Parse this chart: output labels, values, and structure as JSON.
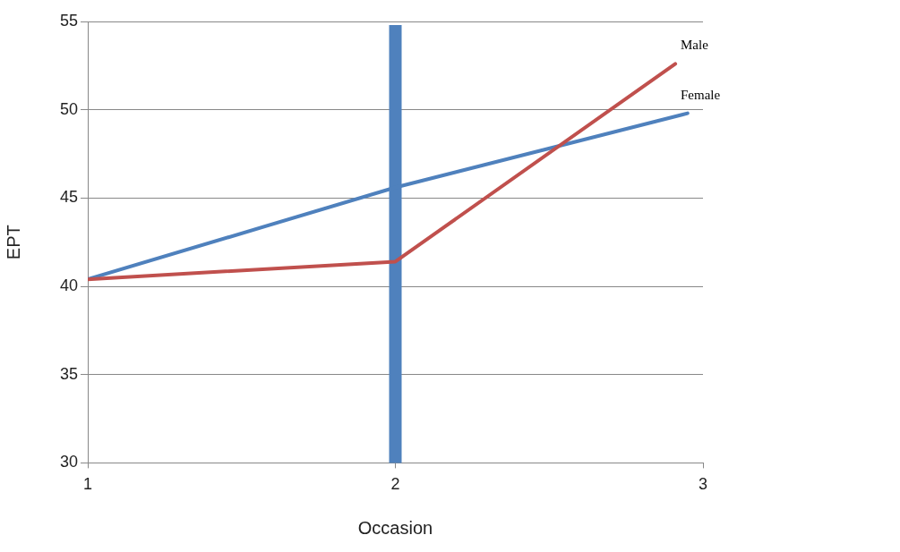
{
  "chart_data": {
    "type": "line",
    "xlabel": "Occasion",
    "ylabel": "EPT",
    "series": [
      {
        "name": "Male",
        "color": "#c0504d",
        "x": [
          1,
          2,
          2.91
        ],
        "values": [
          40.4,
          41.4,
          52.6
        ]
      },
      {
        "name": "Female",
        "color": "#4f81bd",
        "x": [
          1,
          2,
          2.95
        ],
        "values": [
          40.4,
          45.6,
          49.8
        ]
      }
    ],
    "xlim": [
      1,
      3
    ],
    "xticks": [
      1,
      2,
      3
    ],
    "ylim": [
      30,
      55
    ],
    "yticks": [
      30,
      35,
      40,
      45,
      50,
      55
    ],
    "grid": "y",
    "legend": false,
    "marker": "none",
    "line_style": "solid",
    "ref_lines": [
      {
        "axis": "x",
        "value": 2,
        "color": "#4f81bd"
      }
    ]
  }
}
